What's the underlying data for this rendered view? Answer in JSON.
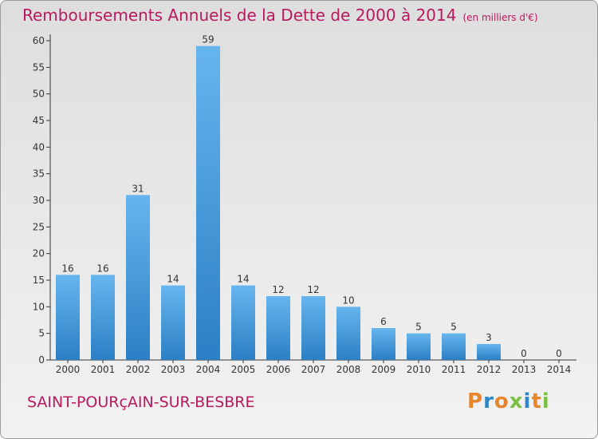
{
  "title": "Remboursements Annuels de la Dette de 2000 à 2014",
  "unit": "(en milliers d'€)",
  "commune": "SAINT-POURçAIN-SUR-BESBRE",
  "logo": "Proxiti",
  "colors": {
    "title": "#b8195f",
    "bar_light": "#66b5ee",
    "bar_dark": "#2b7fc4",
    "axis": "#333333",
    "logo_letters": [
      "#e8862c",
      "#2e86c9",
      "#e8862c",
      "#7ac143",
      "#2e86c9",
      "#e8862c",
      "#7ac143"
    ]
  },
  "chart_data": {
    "type": "bar",
    "categories": [
      "2000",
      "2001",
      "2002",
      "2003",
      "2004",
      "2005",
      "2006",
      "2007",
      "2008",
      "2009",
      "2010",
      "2011",
      "2012",
      "2013",
      "2014"
    ],
    "values": [
      16,
      16,
      31,
      14,
      59,
      14,
      12,
      12,
      10,
      6,
      5,
      5,
      3,
      0,
      0
    ],
    "ylim": [
      0,
      60
    ],
    "yticks": [
      0,
      5,
      10,
      15,
      20,
      25,
      30,
      35,
      40,
      45,
      50,
      55,
      60
    ],
    "grid": false,
    "data_labels": true
  }
}
